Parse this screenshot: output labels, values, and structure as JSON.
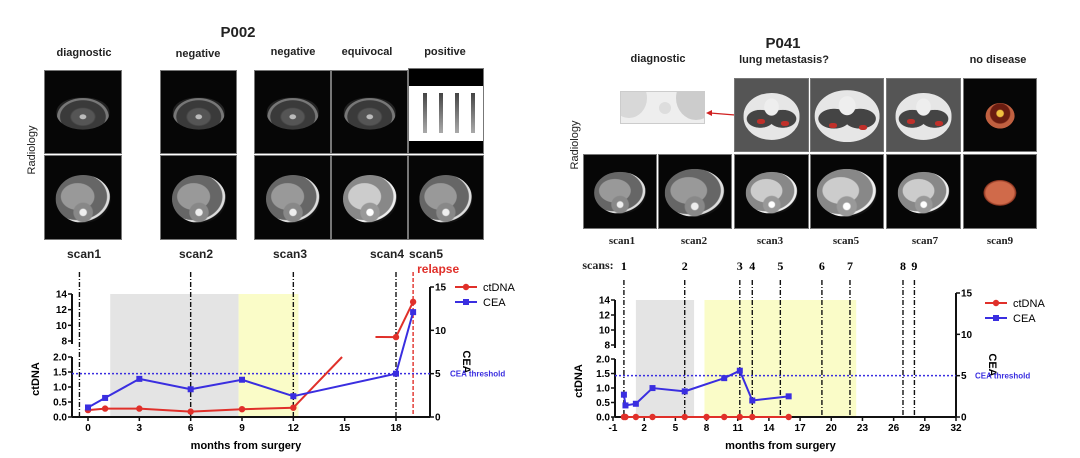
{
  "panels": [
    {
      "title": "P002",
      "radiology_label": "Radiology",
      "status_labels": [
        "diagnostic",
        "negative",
        "negative",
        "equivocal",
        "positive"
      ],
      "scan_labels": [
        "scan1",
        "scan2",
        "scan3",
        "scan4",
        "scan5"
      ]
    },
    {
      "title": "P041",
      "radiology_label": "Radiology",
      "status_labels": [
        "diagnostic",
        "lung metastasis?",
        "no disease"
      ],
      "scan_labels": [
        "scan1",
        "scan2",
        "scan3",
        "scan5",
        "scan7",
        "scan9"
      ],
      "scans_prefix": "scans:"
    }
  ],
  "chart_data": [
    {
      "type": "line",
      "title": "P002",
      "xlabel": "months from surgery",
      "ylabel": "ctDNA",
      "y2label": "CEA",
      "xticks": [
        0,
        3,
        6,
        9,
        12,
        15,
        18
      ],
      "xlim": [
        -1,
        20
      ],
      "ylim_lower": [
        0,
        2
      ],
      "ylim_upper": [
        8,
        14
      ],
      "yticks_lower": [
        "0.0",
        "0.5",
        "1.0",
        "1.5",
        "2.0"
      ],
      "yticks_upper": [
        "8",
        "10",
        "12",
        "14"
      ],
      "y2lim": [
        0,
        15
      ],
      "y2ticks": [
        "0",
        "5",
        "10",
        "15"
      ],
      "legend": {
        "position": "top-right",
        "entries": [
          "ctDNA",
          "CEA"
        ]
      },
      "colors": {
        "ctDNA": "#e0302a",
        "CEA": "#3a2ee0",
        "threshold": "#3a2ee0",
        "relapse": "#e0302a"
      },
      "series": [
        {
          "name": "ctDNA",
          "axis": "left",
          "x": [
            0,
            1,
            3,
            6,
            9,
            12,
            18,
            19
          ],
          "y": [
            0.23,
            0.28,
            0.28,
            0.18,
            0.26,
            0.31,
            8.5,
            13.0
          ]
        },
        {
          "name": "CEA",
          "axis": "right",
          "x": [
            0,
            1,
            3,
            6,
            9,
            12,
            18,
            19
          ],
          "y": [
            1.1,
            2.2,
            4.4,
            3.2,
            4.3,
            2.4,
            5.0,
            12.1
          ]
        }
      ],
      "threshold": {
        "label": "CEA threshold",
        "value": 5
      },
      "scan_lines": [
        -0.5,
        6,
        12,
        18
      ],
      "relapse": {
        "label": "relapse",
        "x": 19
      },
      "shaded": [
        {
          "from": 1.3,
          "to": 8.8,
          "color": "#e4e4e4"
        },
        {
          "from": 8.8,
          "to": 12.3,
          "color": "#fafcc8"
        }
      ]
    },
    {
      "type": "line",
      "title": "P041",
      "xlabel": "months from surgery",
      "ylabel": "ctDNA",
      "y2label": "CEA",
      "xticks": [
        -1,
        2,
        5,
        8,
        11,
        14,
        17,
        20,
        23,
        26,
        29,
        32
      ],
      "xlim": [
        -1,
        32
      ],
      "ylim_lower": [
        0,
        2
      ],
      "ylim_upper": [
        8,
        14
      ],
      "yticks_lower": [
        "0.0",
        "0.5",
        "1.0",
        "1.5",
        "2.0"
      ],
      "yticks_upper": [
        "8",
        "10",
        "12",
        "14"
      ],
      "y2lim": [
        0,
        15
      ],
      "y2ticks": [
        "0",
        "5",
        "10",
        "15"
      ],
      "legend": {
        "position": "top-right",
        "entries": [
          "ctDNA",
          "CEA"
        ]
      },
      "colors": {
        "ctDNA": "#e0302a",
        "CEA": "#3a2ee0",
        "threshold": "#3a2ee0"
      },
      "series": [
        {
          "name": "ctDNA",
          "axis": "left",
          "x": [
            0.05,
            0.2,
            1.2,
            2.8,
            5.9,
            8.0,
            9.7,
            11.2,
            12.4,
            15.9
          ],
          "y": [
            0,
            0,
            0,
            0,
            0,
            0,
            0,
            0,
            0,
            0
          ]
        },
        {
          "name": "CEA",
          "axis": "right",
          "x": [
            0.05,
            0.2,
            1.2,
            2.8,
            5.9,
            9.7,
            11.2,
            12.4,
            15.9
          ],
          "y": [
            2.7,
            1.4,
            1.6,
            3.5,
            3.1,
            4.7,
            5.6,
            2.0,
            2.5
          ]
        }
      ],
      "threshold": {
        "label": "CEA threshold",
        "value": 5
      },
      "scan_lines": [
        0.05,
        5.9,
        11.2,
        12.4,
        15.1,
        19.1,
        21.8,
        26.9,
        28.0
      ],
      "scan_numbers": [
        "1",
        "2",
        "3",
        "4",
        "5",
        "6",
        "7",
        "8",
        "9"
      ],
      "shaded": [
        {
          "from": 1.2,
          "to": 6.8,
          "color": "#e4e4e4"
        },
        {
          "from": 7.8,
          "to": 22.4,
          "color": "#fafcc8"
        }
      ]
    }
  ]
}
